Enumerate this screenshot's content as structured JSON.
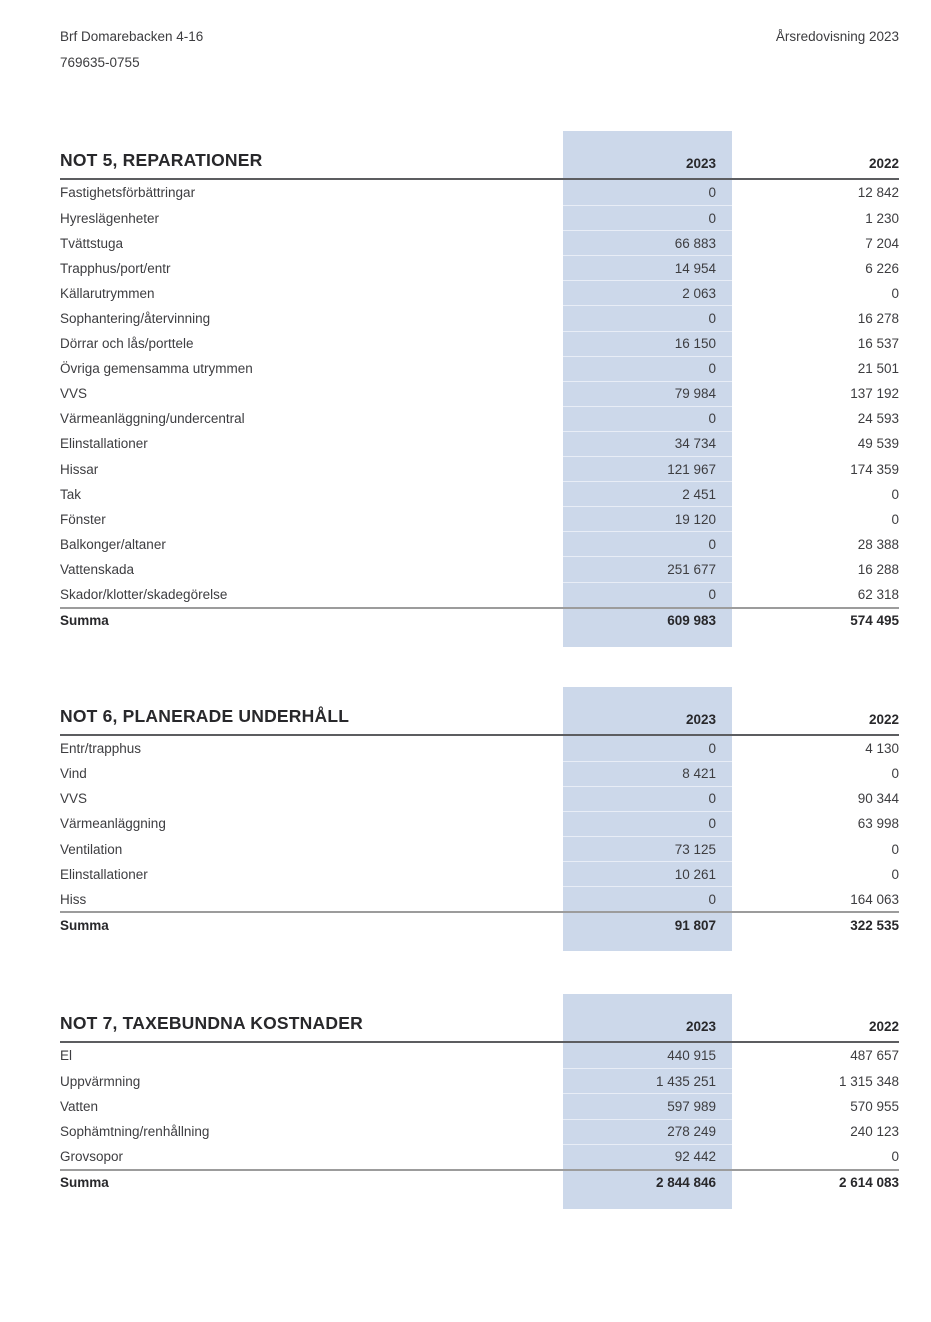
{
  "page_header": {
    "org_name": "Brf Domarebacken 4-16",
    "org_number": "769635-0755",
    "report_title": "Årsredovisning 2023"
  },
  "colors": {
    "highlight_column": "#ccd8ea",
    "text": "#3d3d40",
    "header_rule": "#5c5d60",
    "summa_rule": "#9c9c9c"
  },
  "tables": [
    {
      "title": "NOT 5, REPARATIONER",
      "col1": "2023",
      "col2": "2022",
      "rows": [
        [
          "Fastighetsförbättringar",
          "0",
          "12 842"
        ],
        [
          "Hyreslägenheter",
          "0",
          "1 230"
        ],
        [
          "Tvättstuga",
          "66 883",
          "7 204"
        ],
        [
          "Trapphus/port/entr",
          "14 954",
          "6 226"
        ],
        [
          "Källarutrymmen",
          "2 063",
          "0"
        ],
        [
          "Sophantering/återvinning",
          "0",
          "16 278"
        ],
        [
          "Dörrar och lås/porttele",
          "16 150",
          "16 537"
        ],
        [
          "Övriga gemensamma utrymmen",
          "0",
          "21 501"
        ],
        [
          "VVS",
          "79 984",
          "137 192"
        ],
        [
          "Värmeanläggning/undercentral",
          "0",
          "24 593"
        ],
        [
          "Elinstallationer",
          "34 734",
          "49 539"
        ],
        [
          "Hissar",
          "121 967",
          "174 359"
        ],
        [
          "Tak",
          "2 451",
          "0"
        ],
        [
          "Fönster",
          "19 120",
          "0"
        ],
        [
          "Balkonger/altaner",
          "0",
          "28 388"
        ],
        [
          "Vattenskada",
          "251 677",
          "16 288"
        ],
        [
          "Skador/klotter/skadegörelse",
          "0",
          "62 318"
        ]
      ],
      "summa": [
        "Summa",
        "609 983",
        "574 495"
      ]
    },
    {
      "title": "NOT 6, PLANERADE UNDERHÅLL",
      "col1": "2023",
      "col2": "2022",
      "rows": [
        [
          "Entr/trapphus",
          "0",
          "4 130"
        ],
        [
          "Vind",
          "8 421",
          "0"
        ],
        [
          "VVS",
          "0",
          "90 344"
        ],
        [
          "Värmeanläggning",
          "0",
          "63 998"
        ],
        [
          "Ventilation",
          "73 125",
          "0"
        ],
        [
          "Elinstallationer",
          "10 261",
          "0"
        ],
        [
          "Hiss",
          "0",
          "164 063"
        ]
      ],
      "summa": [
        "Summa",
        "91 807",
        "322 535"
      ]
    },
    {
      "title": "NOT 7, TAXEBUNDNA KOSTNADER",
      "col1": "2023",
      "col2": "2022",
      "rows": [
        [
          "El",
          "440 915",
          "487 657"
        ],
        [
          "Uppvärmning",
          "1 435 251",
          "1 315 348"
        ],
        [
          "Vatten",
          "597 989",
          "570 955"
        ],
        [
          "Sophämtning/renhållning",
          "278 249",
          "240 123"
        ],
        [
          "Grovsopor",
          "92 442",
          "0"
        ]
      ],
      "summa": [
        "Summa",
        "2 844 846",
        "2 614 083"
      ]
    }
  ]
}
